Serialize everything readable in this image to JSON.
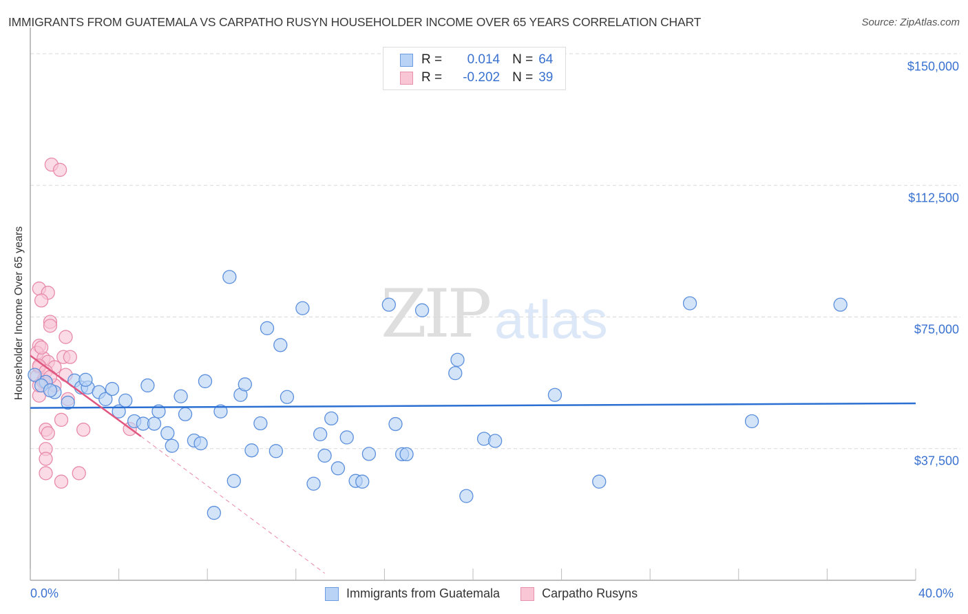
{
  "title": "IMMIGRANTS FROM GUATEMALA VS CARPATHO RUSYN HOUSEHOLDER INCOME OVER 65 YEARS CORRELATION CHART",
  "source": "Source: ZipAtlas.com",
  "watermark": {
    "zip": "ZIP",
    "atlas": "atlas"
  },
  "legend": {
    "rows": [
      {
        "r_label": "R =",
        "r_value": "0.014",
        "n_label": "N =",
        "n_value": "64",
        "color": "#b8d3f5"
      },
      {
        "r_label": "R =",
        "r_value": "-0.202",
        "n_label": "N =",
        "n_value": "39",
        "color": "#f9c6d6"
      }
    ]
  },
  "bottom_legend": [
    {
      "label": "Immigrants from Guatemala",
      "color": "#b8d3f5"
    },
    {
      "label": "Carpatho Rusyns",
      "color": "#f9c6d6"
    }
  ],
  "axes": {
    "ylabel": "Householder Income Over 65 years",
    "y_ticks": [
      "$150,000",
      "$112,500",
      "$75,000",
      "$37,500"
    ],
    "x_ticks": [
      "0.0%",
      "40.0%"
    ]
  },
  "colors": {
    "blue_fill": "#b8d3f5",
    "blue_stroke": "#5b8fdc",
    "blue_line": "#2a6fd1",
    "pink_fill": "#f9c6d6",
    "pink_stroke": "#e88aa9",
    "pink_line": "#e0567f",
    "tick_text": "#3a72d0"
  },
  "chart_data": {
    "type": "scatter",
    "title": "Immigrants from Guatemala vs Carpatho Rusyn Householder Income Over 65 Years Correlation Chart",
    "xlabel": "",
    "ylabel": "Householder Income Over 65 years",
    "xlim": [
      0,
      40
    ],
    "ylim": [
      0,
      150000
    ],
    "x_unit": "%",
    "y_ticks": [
      37500,
      75000,
      112500,
      150000
    ],
    "grid": "horizontal dashed",
    "legend_position": "top-center",
    "series": [
      {
        "name": "Immigrants from Guatemala",
        "R": 0.014,
        "N": 64,
        "trend": {
          "x": [
            0,
            40
          ],
          "y": [
            49100,
            50400
          ]
        },
        "points": [
          [
            0.2,
            58500
          ],
          [
            0.7,
            56500
          ],
          [
            1.1,
            53600
          ],
          [
            1.7,
            50600
          ],
          [
            2.0,
            56900
          ],
          [
            2.3,
            54900
          ],
          [
            2.6,
            54900
          ],
          [
            3.1,
            53600
          ],
          [
            3.4,
            51600
          ],
          [
            3.7,
            54500
          ],
          [
            4.0,
            48100
          ],
          [
            4.3,
            51200
          ],
          [
            4.7,
            45300
          ],
          [
            5.1,
            44600
          ],
          [
            5.3,
            55500
          ],
          [
            5.6,
            44600
          ],
          [
            5.8,
            48100
          ],
          [
            6.2,
            41900
          ],
          [
            6.4,
            38300
          ],
          [
            6.8,
            52400
          ],
          [
            7.0,
            47300
          ],
          [
            7.4,
            39800
          ],
          [
            7.7,
            39000
          ],
          [
            7.9,
            56700
          ],
          [
            8.3,
            19200
          ],
          [
            8.6,
            48100
          ],
          [
            9.0,
            86400
          ],
          [
            9.2,
            28300
          ],
          [
            9.5,
            52800
          ],
          [
            9.7,
            55800
          ],
          [
            10.0,
            37000
          ],
          [
            10.4,
            44700
          ],
          [
            10.7,
            71800
          ],
          [
            11.1,
            36800
          ],
          [
            11.3,
            67000
          ],
          [
            11.6,
            52200
          ],
          [
            12.3,
            77500
          ],
          [
            12.8,
            27500
          ],
          [
            13.1,
            41600
          ],
          [
            13.3,
            35500
          ],
          [
            13.6,
            46100
          ],
          [
            13.9,
            31900
          ],
          [
            14.3,
            40700
          ],
          [
            14.7,
            28300
          ],
          [
            15.0,
            28100
          ],
          [
            15.3,
            36000
          ],
          [
            16.2,
            78500
          ],
          [
            16.5,
            44500
          ],
          [
            16.8,
            35900
          ],
          [
            17.0,
            35900
          ],
          [
            17.7,
            76900
          ],
          [
            19.2,
            59000
          ],
          [
            19.3,
            62800
          ],
          [
            19.7,
            24000
          ],
          [
            20.5,
            40300
          ],
          [
            21.0,
            39700
          ],
          [
            23.7,
            52800
          ],
          [
            25.7,
            28100
          ],
          [
            29.8,
            78900
          ],
          [
            32.6,
            45300
          ],
          [
            36.6,
            78500
          ],
          [
            0.5,
            55500
          ],
          [
            2.5,
            57100
          ],
          [
            0.9,
            54100
          ]
        ]
      },
      {
        "name": "Carpatho Rusyns",
        "R": -0.202,
        "N": 39,
        "trend": {
          "x": [
            0,
            5.0
          ],
          "y": [
            64000,
            41000
          ],
          "dashed_extension": {
            "x": [
              5.0,
              13.3
            ],
            "y": [
              41000,
              2000
            ]
          }
        },
        "points": [
          [
            0.96,
            118400
          ],
          [
            1.34,
            116900
          ],
          [
            0.4,
            83100
          ],
          [
            0.8,
            81900
          ],
          [
            0.5,
            79700
          ],
          [
            0.9,
            73600
          ],
          [
            0.9,
            72500
          ],
          [
            1.6,
            69300
          ],
          [
            0.4,
            66800
          ],
          [
            0.3,
            64800
          ],
          [
            0.6,
            63200
          ],
          [
            1.5,
            63600
          ],
          [
            1.8,
            63600
          ],
          [
            0.8,
            62200
          ],
          [
            0.4,
            60700
          ],
          [
            1.1,
            60700
          ],
          [
            1.6,
            58500
          ],
          [
            0.3,
            58100
          ],
          [
            0.6,
            57100
          ],
          [
            0.9,
            54100
          ],
          [
            0.4,
            52600
          ],
          [
            1.4,
            45700
          ],
          [
            0.7,
            42900
          ],
          [
            0.8,
            41900
          ],
          [
            2.4,
            42900
          ],
          [
            0.7,
            37400
          ],
          [
            0.7,
            34600
          ],
          [
            0.7,
            30500
          ],
          [
            2.2,
            30500
          ],
          [
            1.4,
            28100
          ],
          [
            4.5,
            43100
          ],
          [
            0.4,
            55500
          ],
          [
            0.6,
            56500
          ],
          [
            0.4,
            61100
          ],
          [
            1.1,
            55500
          ],
          [
            1.7,
            51600
          ],
          [
            0.5,
            66300
          ],
          [
            0.7,
            59500
          ],
          [
            0.9,
            57900
          ]
        ]
      }
    ]
  }
}
